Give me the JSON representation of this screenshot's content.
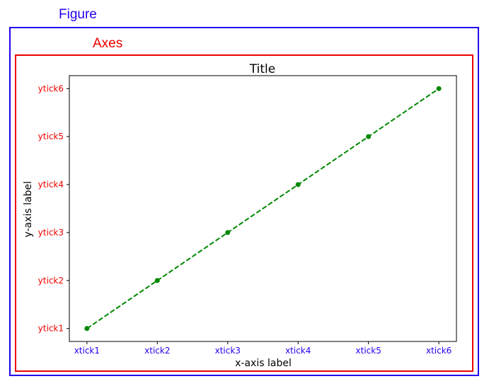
{
  "annotations": {
    "figure_label": "Figure",
    "axes_label": "Axes",
    "figure_color": "#2200ee",
    "axes_color": "#ee0000"
  },
  "chart_data": {
    "type": "line",
    "title": "Title",
    "xlabel": "x-axis label",
    "ylabel": "y-axis label",
    "x": [
      "xtick1",
      "xtick2",
      "xtick3",
      "xtick4",
      "xtick5",
      "xtick6"
    ],
    "y_ticks": [
      "ytick1",
      "ytick2",
      "ytick3",
      "ytick4",
      "ytick5",
      "ytick6"
    ],
    "series": [
      {
        "x": [
          1,
          2,
          3,
          4,
          5,
          6
        ],
        "values": [
          1,
          2,
          3,
          4,
          5,
          6
        ],
        "color": "#008800",
        "linestyle": "dashed",
        "marker": "circle"
      }
    ],
    "xlim": [
      0.75,
      6.25
    ],
    "ylim": [
      0.73,
      6.27
    ],
    "grid": false,
    "xtick_color": "#2200ee",
    "ytick_color": "#ee0000"
  }
}
